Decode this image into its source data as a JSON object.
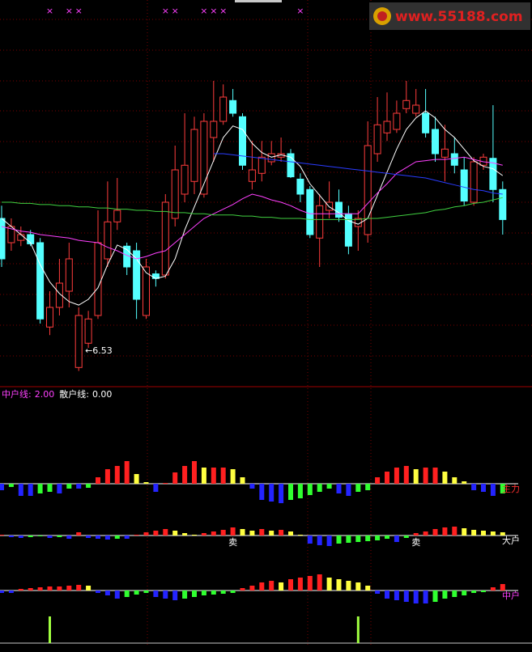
{
  "chart_data": [
    {
      "type": "candlestick",
      "ylim": [
        6.45,
        9.74
      ],
      "up_color": "#ff3c3c",
      "down_color": "#54ffff",
      "open": [
        7.85,
        7.64,
        7.66,
        7.71,
        7.64,
        6.91,
        7.08,
        7.22,
        6.56,
        6.77,
        7.01,
        7.5,
        7.82,
        7.61,
        7.57,
        7.01,
        7.37,
        7.36,
        7.85,
        8.06,
        8.17,
        8.06,
        8.55,
        8.69,
        8.87,
        8.73,
        8.17,
        8.24,
        8.34,
        8.38,
        8.41,
        8.19,
        8.1,
        7.68,
        7.92,
        7.99,
        7.89,
        7.78,
        7.71,
        8.41,
        8.59,
        8.62,
        8.8,
        8.76,
        8.76,
        8.62,
        8.38,
        8.41,
        8.27,
        7.99,
        8.31,
        8.37,
        8.1
      ],
      "high": [
        7.96,
        7.85,
        7.78,
        7.75,
        7.68,
        7.22,
        7.5,
        7.64,
        7.08,
        7.05,
        7.92,
        8.17,
        8.2,
        7.64,
        7.64,
        7.5,
        7.4,
        8.06,
        8.48,
        8.76,
        8.73,
        8.76,
        9.04,
        9.01,
        8.97,
        8.76,
        8.52,
        8.52,
        8.52,
        8.55,
        8.45,
        8.24,
        8.13,
        8.06,
        8.17,
        8.1,
        7.96,
        7.92,
        8.69,
        8.9,
        8.94,
        8.87,
        9.04,
        8.97,
        8.97,
        8.73,
        8.66,
        8.55,
        8.38,
        8.38,
        8.41,
        8.83,
        8.17
      ],
      "low": [
        7.43,
        7.57,
        7.61,
        7.61,
        6.94,
        6.84,
        7.01,
        7.08,
        6.53,
        6.73,
        6.98,
        7.43,
        7.75,
        7.36,
        6.98,
        6.98,
        7.26,
        7.33,
        7.78,
        7.99,
        8.06,
        8.03,
        8.34,
        8.66,
        8.73,
        8.27,
        8.1,
        8.17,
        8.31,
        8.34,
        8.2,
        7.99,
        7.68,
        7.43,
        7.85,
        7.82,
        7.54,
        7.57,
        7.64,
        8.34,
        8.52,
        8.59,
        8.76,
        8.73,
        8.55,
        8.34,
        8.17,
        8.24,
        7.96,
        7.96,
        8.27,
        7.99,
        7.71
      ],
      "close": [
        7.5,
        7.78,
        7.71,
        7.63,
        6.98,
        7.08,
        7.29,
        7.5,
        7.01,
        6.98,
        7.64,
        7.82,
        7.92,
        7.43,
        7.15,
        7.43,
        7.33,
        7.99,
        8.27,
        8.31,
        8.62,
        8.69,
        8.69,
        8.9,
        8.76,
        8.31,
        8.27,
        8.38,
        8.41,
        8.41,
        8.21,
        8.06,
        7.71,
        7.96,
        7.99,
        7.86,
        7.61,
        7.85,
        8.48,
        8.66,
        8.69,
        8.76,
        8.87,
        8.83,
        8.59,
        8.41,
        8.45,
        8.31,
        8.0,
        8.34,
        8.38,
        8.1,
        7.84
      ],
      "lines": [
        {
          "color": "#ffffff",
          "values": [
            7.85,
            7.78,
            7.71,
            7.64,
            7.45,
            7.3,
            7.2,
            7.13,
            7.1,
            7.15,
            7.25,
            7.45,
            7.62,
            7.58,
            7.5,
            7.38,
            7.33,
            7.35,
            7.5,
            7.75,
            7.95,
            8.15,
            8.35,
            8.55,
            8.65,
            8.62,
            8.5,
            8.42,
            8.38,
            8.4,
            8.38,
            8.3,
            8.15,
            8.05,
            7.95,
            7.9,
            7.83,
            7.8,
            7.85,
            8.05,
            8.25,
            8.45,
            8.62,
            8.72,
            8.78,
            8.72,
            8.62,
            8.55,
            8.45,
            8.35,
            8.3,
            8.28,
            8.22
          ]
        },
        {
          "color": "#ff40ff",
          "values": [
            7.78,
            7.76,
            7.74,
            7.73,
            7.71,
            7.7,
            7.69,
            7.68,
            7.66,
            7.65,
            7.64,
            7.6,
            7.57,
            7.53,
            7.5,
            7.52,
            7.55,
            7.57,
            7.64,
            7.71,
            7.78,
            7.85,
            7.89,
            7.93,
            7.97,
            8.02,
            8.06,
            8.04,
            8.01,
            7.99,
            7.96,
            7.92,
            7.89,
            7.89,
            7.89,
            7.89,
            7.89,
            7.89,
            7.98,
            8.07,
            8.15,
            8.24,
            8.29,
            8.34,
            8.35,
            8.36,
            8.36,
            8.37,
            8.38,
            8.36,
            8.34,
            8.33,
            8.31
          ]
        },
        {
          "color": "#2a3cff",
          "values": [
            null,
            null,
            null,
            null,
            null,
            null,
            null,
            null,
            null,
            null,
            null,
            null,
            null,
            null,
            null,
            null,
            null,
            null,
            null,
            null,
            null,
            null,
            8.41,
            8.41,
            8.4,
            8.39,
            8.38,
            8.37,
            8.36,
            8.35,
            8.34,
            8.33,
            8.32,
            8.31,
            8.3,
            8.29,
            8.28,
            8.27,
            8.26,
            8.25,
            8.24,
            8.23,
            8.22,
            8.21,
            8.2,
            8.18,
            8.16,
            8.14,
            8.12,
            8.1,
            8.09,
            8.07,
            8.06
          ]
        },
        {
          "color": "#40d040",
          "values": [
            7.99,
            7.99,
            7.98,
            7.98,
            7.97,
            7.97,
            7.96,
            7.96,
            7.95,
            7.95,
            7.94,
            7.94,
            7.93,
            7.93,
            7.92,
            7.92,
            7.91,
            7.91,
            7.9,
            7.9,
            7.89,
            7.89,
            7.88,
            7.88,
            7.88,
            7.87,
            7.87,
            7.86,
            7.86,
            7.85,
            7.85,
            7.85,
            7.84,
            7.84,
            7.84,
            7.84,
            7.84,
            7.84,
            7.85,
            7.85,
            7.86,
            7.87,
            7.88,
            7.89,
            7.9,
            7.92,
            7.93,
            7.95,
            7.96,
            7.98,
            7.99,
            8.01,
            8.03
          ]
        }
      ],
      "signals": {
        "label": "×",
        "color": "#ff40ff",
        "indices": [
          5,
          7,
          8,
          17,
          18,
          21,
          22,
          23,
          31
        ]
      },
      "low_annotation": {
        "text": "←6.53",
        "index": 9
      },
      "watermark": "www.55188.com"
    },
    {
      "type": "bar",
      "legend": [
        {
          "label": "中户线:",
          "value": "2.00",
          "color": "#ff40ff"
        },
        {
          "label": "散户线:",
          "value": "0.00",
          "color": "#ffffff"
        }
      ],
      "ylim": [
        -3.5,
        3.5
      ],
      "bar_colors": {
        "rise_up": "#ff2020",
        "fall_up": "#ffff40",
        "fall_down": "#2424ff",
        "rise_down": "#30ff30"
      },
      "rows": [
        {
          "name": "主力",
          "color": "#ff3030",
          "values": [
            -0.8,
            -0.4,
            -1.5,
            -1.5,
            -1.2,
            -1.0,
            -1.2,
            -0.6,
            -0.6,
            -0.5,
            0.8,
            1.8,
            2.2,
            2.8,
            1.2,
            0.2,
            -1.0,
            0.1,
            1.4,
            2.2,
            2.8,
            2.0,
            2.0,
            2.0,
            1.8,
            0.8,
            -0.6,
            -2.0,
            -2.2,
            -2.4,
            -2.0,
            -1.8,
            -1.4,
            -1.0,
            -0.6,
            -1.2,
            -1.5,
            -1.0,
            -0.8,
            0.8,
            1.5,
            2.0,
            2.2,
            1.8,
            2.0,
            2.0,
            1.5,
            0.8,
            0.3,
            -0.8,
            -1.0,
            -1.5,
            -1.2
          ]
        },
        {
          "name": "大户",
          "color": "#ffffff",
          "values": [
            0.1,
            -0.2,
            -0.3,
            -0.2,
            -0.1,
            -0.3,
            -0.2,
            -0.4,
            0.4,
            -0.3,
            -0.4,
            -0.5,
            -0.4,
            -0.4,
            0.1,
            0.4,
            0.6,
            0.8,
            0.6,
            0.3,
            0.1,
            0.3,
            0.5,
            0.7,
            1.0,
            0.8,
            0.6,
            0.8,
            0.6,
            0.7,
            0.5,
            0.1,
            -1.0,
            -1.2,
            -1.3,
            -1.0,
            -0.9,
            -0.8,
            -0.7,
            -0.6,
            -0.4,
            -0.8,
            -0.3,
            0.3,
            0.5,
            0.8,
            1.0,
            1.1,
            0.9,
            0.7,
            0.6,
            0.5,
            0.4
          ]
        },
        {
          "name": "中户",
          "color": "#ff40ff",
          "values": [
            -0.3,
            -0.3,
            0.2,
            0.3,
            0.4,
            0.5,
            0.5,
            0.6,
            0.7,
            0.6,
            -0.3,
            -0.6,
            -1.0,
            -0.8,
            -0.5,
            -0.3,
            -0.8,
            -1.0,
            -1.2,
            -1.0,
            -0.8,
            -0.6,
            -0.5,
            -0.4,
            -0.3,
            0.3,
            0.6,
            1.0,
            1.2,
            1.0,
            1.4,
            1.6,
            1.8,
            2.0,
            1.6,
            1.4,
            1.2,
            1.0,
            0.6,
            -0.4,
            -1.0,
            -1.2,
            -1.4,
            -1.6,
            -1.6,
            -1.4,
            -1.0,
            -0.8,
            -0.6,
            -0.3,
            -0.2,
            0.4,
            0.8
          ]
        },
        {
          "color": "#a0ff40",
          "values": [
            0,
            0,
            0,
            0,
            0,
            3.3,
            0,
            0,
            0,
            0,
            0,
            0,
            0,
            0,
            0,
            0,
            0,
            0,
            0,
            0,
            0,
            0,
            0,
            0,
            0,
            0,
            0,
            0,
            0,
            0,
            0,
            0,
            0,
            0,
            0,
            0,
            0,
            3.3,
            0,
            0,
            0,
            0,
            0,
            0,
            0,
            0,
            0,
            0,
            0,
            0,
            0,
            0,
            0
          ]
        }
      ],
      "annotations": [
        {
          "text": "卖",
          "index": 24
        },
        {
          "text": "卖",
          "index": 43
        }
      ]
    }
  ]
}
